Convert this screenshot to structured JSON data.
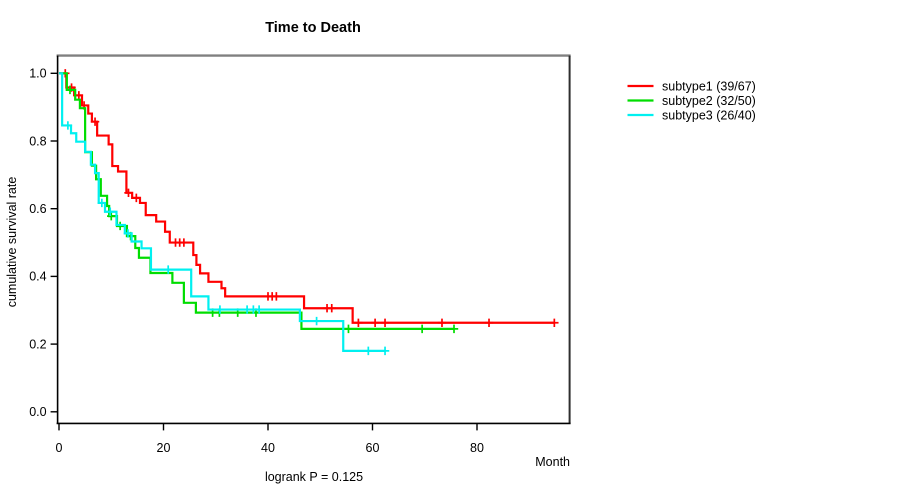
{
  "chart_data": {
    "type": "line",
    "subtype": "kaplan-meier-step-curves",
    "title": "Time to Death",
    "xlabel": "Month",
    "ylabel": "cumulative survival rate",
    "annotation": "logrank P = 0.125",
    "xlim": [
      0,
      97.5
    ],
    "ylim": [
      0,
      1
    ],
    "grid": false,
    "legend_position": "top-right-outside",
    "x_ticks": [
      {
        "v": 0,
        "label": "0"
      },
      {
        "v": 20,
        "label": "20"
      },
      {
        "v": 40,
        "label": "40"
      },
      {
        "v": 60,
        "label": "60"
      },
      {
        "v": 80,
        "label": "80"
      }
    ],
    "y_ticks": [
      {
        "v": 0.0,
        "label": "0.0"
      },
      {
        "v": 0.2,
        "label": "0.2"
      },
      {
        "v": 0.4,
        "label": "0.4"
      },
      {
        "v": 0.6,
        "label": "0.6"
      },
      {
        "v": 0.8,
        "label": "0.8"
      },
      {
        "v": 1.0,
        "label": "1.0"
      }
    ],
    "series": [
      {
        "name": "subtype1",
        "legend_label": "subtype1 (39/67)",
        "events": 39,
        "n": 67,
        "color": "#ff0000",
        "steps": [
          [
            0,
            1.0
          ],
          [
            1.4,
            0.958
          ],
          [
            2.9,
            0.935
          ],
          [
            4.4,
            0.905
          ],
          [
            5.6,
            0.881
          ],
          [
            6.3,
            0.857
          ],
          [
            7.3,
            0.816
          ],
          [
            9.5,
            0.79
          ],
          [
            10.2,
            0.726
          ],
          [
            11.3,
            0.71
          ],
          [
            12.9,
            0.647
          ],
          [
            14,
            0.632
          ],
          [
            15.5,
            0.617
          ],
          [
            16.6,
            0.581
          ],
          [
            18.6,
            0.562
          ],
          [
            20.3,
            0.532
          ],
          [
            21.2,
            0.5
          ],
          [
            25.7,
            0.463
          ],
          [
            26.3,
            0.434
          ],
          [
            27,
            0.409
          ],
          [
            28.6,
            0.384
          ],
          [
            31.1,
            0.365
          ],
          [
            31.8,
            0.341
          ],
          [
            46.9,
            0.306
          ],
          [
            56.2,
            0.263
          ]
        ],
        "end_month": 94.8,
        "censor_marks": [
          [
            1.2,
            1.0
          ],
          [
            2.4,
            0.958
          ],
          [
            3.8,
            0.935
          ],
          [
            4.8,
            0.905
          ],
          [
            6.9,
            0.857
          ],
          [
            13.3,
            0.647
          ],
          [
            14.8,
            0.632
          ],
          [
            22.3,
            0.5
          ],
          [
            23.1,
            0.5
          ],
          [
            23.9,
            0.5
          ],
          [
            40,
            0.341
          ],
          [
            40.8,
            0.341
          ],
          [
            41.6,
            0.341
          ],
          [
            51.3,
            0.306
          ],
          [
            52.2,
            0.306
          ],
          [
            57.3,
            0.263
          ],
          [
            60.5,
            0.263
          ],
          [
            62.4,
            0.263
          ],
          [
            73.3,
            0.263
          ],
          [
            82.3,
            0.263
          ],
          [
            94.8,
            0.263
          ]
        ]
      },
      {
        "name": "subtype2",
        "legend_label": "subtype2 (32/50)",
        "events": 32,
        "n": 50,
        "color": "#00dd00",
        "steps": [
          [
            0,
            1.0
          ],
          [
            1.5,
            0.951
          ],
          [
            3.1,
            0.922
          ],
          [
            4,
            0.897
          ],
          [
            5,
            0.767
          ],
          [
            6.3,
            0.727
          ],
          [
            7.1,
            0.687
          ],
          [
            8,
            0.638
          ],
          [
            9.2,
            0.608
          ],
          [
            9.6,
            0.578
          ],
          [
            11.1,
            0.549
          ],
          [
            13,
            0.519
          ],
          [
            14.6,
            0.484
          ],
          [
            15.3,
            0.455
          ],
          [
            17.5,
            0.41
          ],
          [
            21.7,
            0.381
          ],
          [
            23.9,
            0.322
          ],
          [
            26.2,
            0.293
          ],
          [
            46.4,
            0.245
          ]
        ],
        "end_month": 75.6,
        "censor_marks": [
          [
            2.1,
            0.951
          ],
          [
            10,
            0.578
          ],
          [
            11.7,
            0.549
          ],
          [
            13.7,
            0.519
          ],
          [
            29.4,
            0.293
          ],
          [
            30.7,
            0.293
          ],
          [
            34.2,
            0.293
          ],
          [
            37.7,
            0.293
          ],
          [
            55.4,
            0.245
          ],
          [
            69.5,
            0.245
          ],
          [
            75.6,
            0.245
          ]
        ]
      },
      {
        "name": "subtype3",
        "legend_label": "subtype3 (26/40)",
        "events": 26,
        "n": 40,
        "color": "#00f0f0",
        "steps": [
          [
            0,
            1.0
          ],
          [
            0.6,
            0.846
          ],
          [
            2.3,
            0.823
          ],
          [
            3.3,
            0.798
          ],
          [
            5,
            0.768
          ],
          [
            6.1,
            0.73
          ],
          [
            6.9,
            0.705
          ],
          [
            7.6,
            0.617
          ],
          [
            8.8,
            0.591
          ],
          [
            11,
            0.552
          ],
          [
            12.6,
            0.527
          ],
          [
            13.9,
            0.503
          ],
          [
            15.8,
            0.483
          ],
          [
            17.6,
            0.42
          ],
          [
            25.3,
            0.341
          ],
          [
            28.6,
            0.302
          ],
          [
            46.1,
            0.268
          ],
          [
            54.4,
            0.18
          ]
        ],
        "end_month": 62.4,
        "censor_marks": [
          [
            1.7,
            0.846
          ],
          [
            8.2,
            0.617
          ],
          [
            9.8,
            0.591
          ],
          [
            13.2,
            0.527
          ],
          [
            20.9,
            0.42
          ],
          [
            30.8,
            0.302
          ],
          [
            36,
            0.302
          ],
          [
            37.2,
            0.302
          ],
          [
            38.3,
            0.302
          ],
          [
            49.3,
            0.268
          ],
          [
            59.2,
            0.18
          ],
          [
            62.4,
            0.18
          ]
        ]
      }
    ]
  }
}
